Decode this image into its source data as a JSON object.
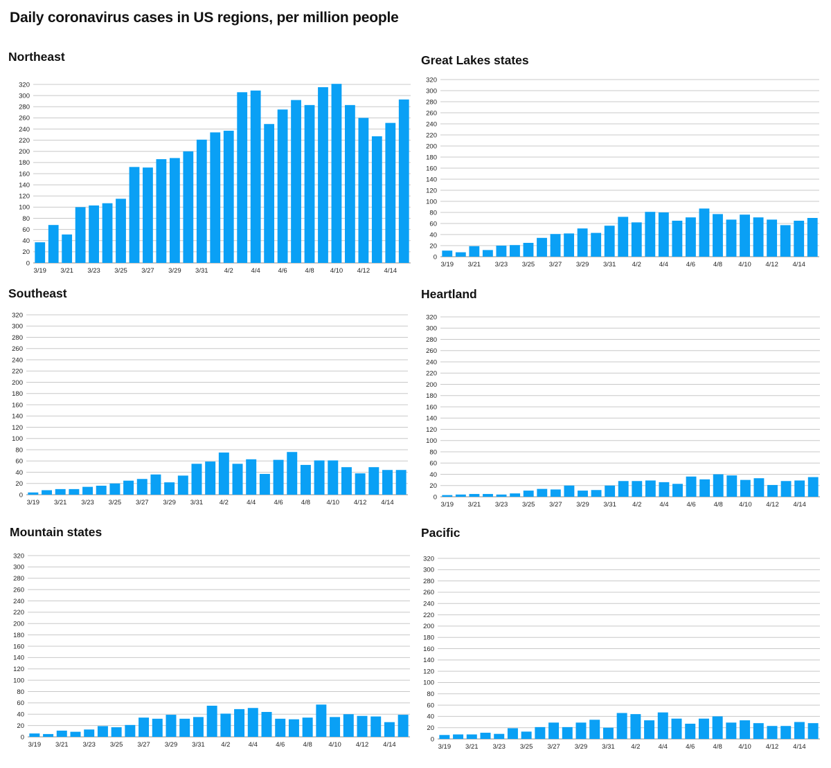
{
  "page": {
    "title": "Daily coronavirus cases in US regions, per million people"
  },
  "colors": {
    "bar": "#0aa0f5",
    "grid": "#c8c8c8",
    "axis": "#8a8a8a"
  },
  "chart_data": [
    {
      "type": "bar",
      "title": "Northeast",
      "categories": [
        "3/19",
        "3/20",
        "3/21",
        "3/22",
        "3/23",
        "3/24",
        "3/25",
        "3/26",
        "3/27",
        "3/28",
        "3/29",
        "3/30",
        "3/31",
        "4/1",
        "4/2",
        "4/3",
        "4/4",
        "4/5",
        "4/6",
        "4/7",
        "4/8",
        "4/9",
        "4/10",
        "4/11",
        "4/12",
        "4/13",
        "4/14",
        "4/15"
      ],
      "values": [
        37,
        68,
        51,
        100,
        103,
        107,
        115,
        172,
        171,
        186,
        188,
        200,
        221,
        234,
        237,
        306,
        309,
        249,
        275,
        292,
        283,
        315,
        321,
        283,
        260,
        227,
        251,
        293
      ],
      "ylim": [
        0,
        320
      ],
      "yticks": [
        0,
        20,
        40,
        60,
        80,
        100,
        120,
        140,
        160,
        180,
        200,
        220,
        240,
        260,
        280,
        300,
        320
      ],
      "xticks": [
        "3/19",
        "3/21",
        "3/23",
        "3/25",
        "3/27",
        "3/29",
        "3/31",
        "4/2",
        "4/4",
        "4/6",
        "4/8",
        "4/10",
        "4/12",
        "4/14"
      ],
      "grid": true
    },
    {
      "type": "bar",
      "title": "Great Lakes states",
      "categories": [
        "3/19",
        "3/20",
        "3/21",
        "3/22",
        "3/23",
        "3/24",
        "3/25",
        "3/26",
        "3/27",
        "3/28",
        "3/29",
        "3/30",
        "3/31",
        "4/1",
        "4/2",
        "4/3",
        "4/4",
        "4/5",
        "4/6",
        "4/7",
        "4/8",
        "4/9",
        "4/10",
        "4/11",
        "4/12",
        "4/13",
        "4/14",
        "4/15"
      ],
      "values": [
        11,
        8,
        19,
        12,
        20,
        21,
        25,
        34,
        41,
        42,
        51,
        43,
        56,
        72,
        62,
        81,
        80,
        65,
        71,
        87,
        77,
        67,
        76,
        71,
        67,
        57,
        65,
        70
      ],
      "ylim": [
        0,
        320
      ],
      "yticks": [
        0,
        20,
        40,
        60,
        80,
        100,
        120,
        140,
        160,
        180,
        200,
        220,
        240,
        260,
        280,
        300,
        320
      ],
      "xticks": [
        "3/19",
        "3/21",
        "3/23",
        "3/25",
        "3/27",
        "3/29",
        "3/31",
        "4/2",
        "4/4",
        "4/6",
        "4/8",
        "4/10",
        "4/12",
        "4/14"
      ],
      "grid": true
    },
    {
      "type": "bar",
      "title": "Southeast",
      "categories": [
        "3/19",
        "3/20",
        "3/21",
        "3/22",
        "3/23",
        "3/24",
        "3/25",
        "3/26",
        "3/27",
        "3/28",
        "3/29",
        "3/30",
        "3/31",
        "4/1",
        "4/2",
        "4/3",
        "4/4",
        "4/5",
        "4/6",
        "4/7",
        "4/8",
        "4/9",
        "4/10",
        "4/11",
        "4/12",
        "4/13",
        "4/14",
        "4/15"
      ],
      "values": [
        4,
        8,
        10,
        10,
        14,
        16,
        20,
        25,
        28,
        36,
        22,
        34,
        55,
        59,
        75,
        55,
        63,
        37,
        62,
        76,
        53,
        61,
        61,
        49,
        38,
        49,
        44,
        44
      ],
      "ylim": [
        0,
        320
      ],
      "yticks": [
        0,
        20,
        40,
        60,
        80,
        100,
        120,
        140,
        160,
        180,
        200,
        220,
        240,
        260,
        280,
        300,
        320
      ],
      "xticks": [
        "3/19",
        "3/21",
        "3/23",
        "3/25",
        "3/27",
        "3/29",
        "3/31",
        "4/2",
        "4/4",
        "4/6",
        "4/8",
        "4/10",
        "4/12",
        "4/14"
      ],
      "grid": true
    },
    {
      "type": "bar",
      "title": "Heartland",
      "categories": [
        "3/19",
        "3/20",
        "3/21",
        "3/22",
        "3/23",
        "3/24",
        "3/25",
        "3/26",
        "3/27",
        "3/28",
        "3/29",
        "3/30",
        "3/31",
        "4/1",
        "4/2",
        "4/3",
        "4/4",
        "4/5",
        "4/6",
        "4/7",
        "4/8",
        "4/9",
        "4/10",
        "4/11",
        "4/12",
        "4/13",
        "4/14",
        "4/15"
      ],
      "values": [
        3,
        4,
        5,
        5,
        4,
        6,
        11,
        14,
        13,
        20,
        11,
        12,
        20,
        28,
        28,
        29,
        26,
        23,
        36,
        31,
        40,
        38,
        30,
        33,
        21,
        28,
        29,
        35
      ],
      "ylim": [
        0,
        320
      ],
      "yticks": [
        0,
        20,
        40,
        60,
        80,
        100,
        120,
        140,
        160,
        180,
        200,
        220,
        240,
        260,
        280,
        300,
        320
      ],
      "xticks": [
        "3/19",
        "3/21",
        "3/23",
        "3/25",
        "3/27",
        "3/29",
        "3/31",
        "4/2",
        "4/4",
        "4/6",
        "4/8",
        "4/10",
        "4/12",
        "4/14"
      ],
      "grid": true
    },
    {
      "type": "bar",
      "title": "Mountain states",
      "categories": [
        "3/19",
        "3/20",
        "3/21",
        "3/22",
        "3/23",
        "3/24",
        "3/25",
        "3/26",
        "3/27",
        "3/28",
        "3/29",
        "3/30",
        "3/31",
        "4/1",
        "4/2",
        "4/3",
        "4/4",
        "4/5",
        "4/6",
        "4/7",
        "4/8",
        "4/9",
        "4/10",
        "4/11",
        "4/12",
        "4/13",
        "4/14",
        "4/15"
      ],
      "values": [
        6,
        5,
        11,
        9,
        13,
        19,
        17,
        21,
        34,
        32,
        39,
        32,
        35,
        55,
        41,
        49,
        51,
        44,
        32,
        31,
        34,
        57,
        35,
        40,
        37,
        36,
        26,
        39
      ],
      "ylim": [
        0,
        320
      ],
      "yticks": [
        0,
        20,
        40,
        60,
        80,
        100,
        120,
        140,
        160,
        180,
        200,
        220,
        240,
        260,
        280,
        300,
        320
      ],
      "xticks": [
        "3/19",
        "3/21",
        "3/23",
        "3/25",
        "3/27",
        "3/29",
        "3/31",
        "4/2",
        "4/4",
        "4/6",
        "4/8",
        "4/10",
        "4/12",
        "4/14"
      ],
      "grid": true
    },
    {
      "type": "bar",
      "title": "Pacific",
      "categories": [
        "3/19",
        "3/20",
        "3/21",
        "3/22",
        "3/23",
        "3/24",
        "3/25",
        "3/26",
        "3/27",
        "3/28",
        "3/29",
        "3/30",
        "3/31",
        "4/1",
        "4/2",
        "4/3",
        "4/4",
        "4/5",
        "4/6",
        "4/7",
        "4/8",
        "4/9",
        "4/10",
        "4/11",
        "4/12",
        "4/13",
        "4/14",
        "4/15"
      ],
      "values": [
        7,
        8,
        8,
        11,
        9,
        19,
        13,
        21,
        29,
        21,
        29,
        34,
        20,
        46,
        44,
        33,
        47,
        36,
        27,
        36,
        40,
        29,
        33,
        28,
        23,
        23,
        30,
        28
      ],
      "ylim": [
        0,
        320
      ],
      "yticks": [
        0,
        20,
        40,
        60,
        80,
        100,
        120,
        140,
        160,
        180,
        200,
        220,
        240,
        260,
        280,
        300,
        320
      ],
      "xticks": [
        "3/19",
        "3/21",
        "3/23",
        "3/25",
        "3/27",
        "3/29",
        "3/31",
        "4/2",
        "4/4",
        "4/6",
        "4/8",
        "4/10",
        "4/12",
        "4/14"
      ],
      "grid": true
    }
  ]
}
